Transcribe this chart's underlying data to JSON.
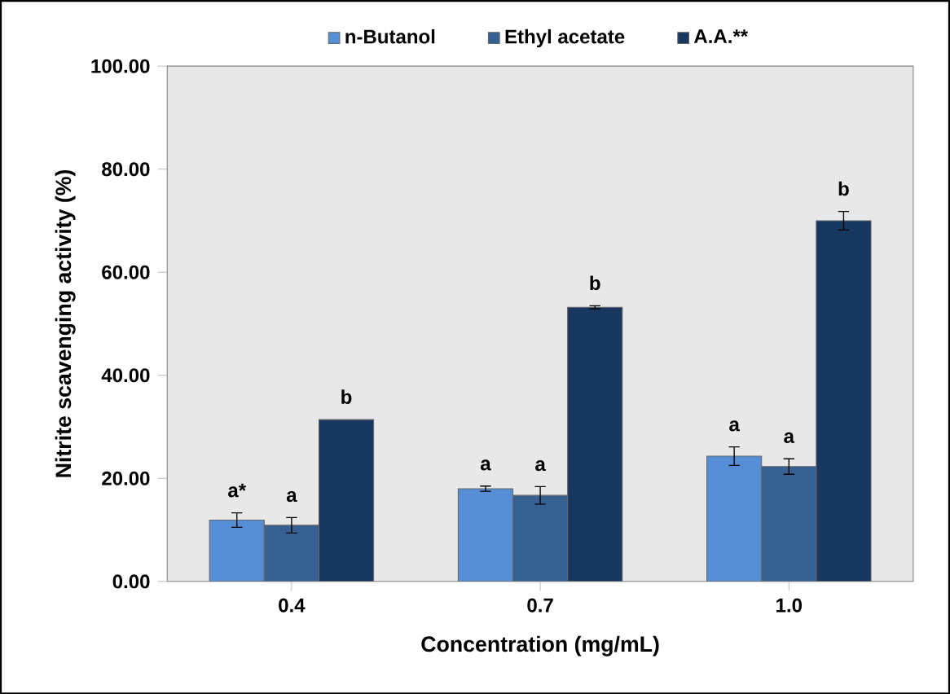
{
  "chart_data": {
    "type": "bar",
    "xlabel": "Concentration (mg/mL)",
    "ylabel": "Nitrite scavenging activity (%)",
    "categories": [
      "0.4",
      "0.7",
      "1.0"
    ],
    "series": [
      {
        "name": "n-Butanol",
        "color": "#558ed5",
        "values": [
          11.9,
          18.0,
          24.3
        ],
        "errors": [
          1.4,
          0.5,
          1.8
        ]
      },
      {
        "name": "Ethyl acetate",
        "color": "#376092",
        "values": [
          10.9,
          16.7,
          22.3
        ],
        "errors": [
          1.5,
          1.7,
          1.5
        ]
      },
      {
        "name": "A.A.**",
        "color": "#17375e",
        "values": [
          31.4,
          53.2,
          70.0
        ],
        "errors": [
          null,
          0.3,
          1.8
        ]
      }
    ],
    "ylim": [
      0,
      100
    ],
    "yticks": [
      {
        "value": 0,
        "label": "0.00"
      },
      {
        "value": 20,
        "label": "20.00"
      },
      {
        "value": 40,
        "label": "40.00"
      },
      {
        "value": 60,
        "label": "60.00"
      },
      {
        "value": 80,
        "label": "80.00"
      },
      {
        "value": 100,
        "label": "100.00"
      }
    ],
    "grid": false,
    "legend": "top",
    "annotations": [
      "a*",
      "a",
      "b",
      "a",
      "a",
      "b",
      "a",
      "a",
      "b"
    ]
  }
}
